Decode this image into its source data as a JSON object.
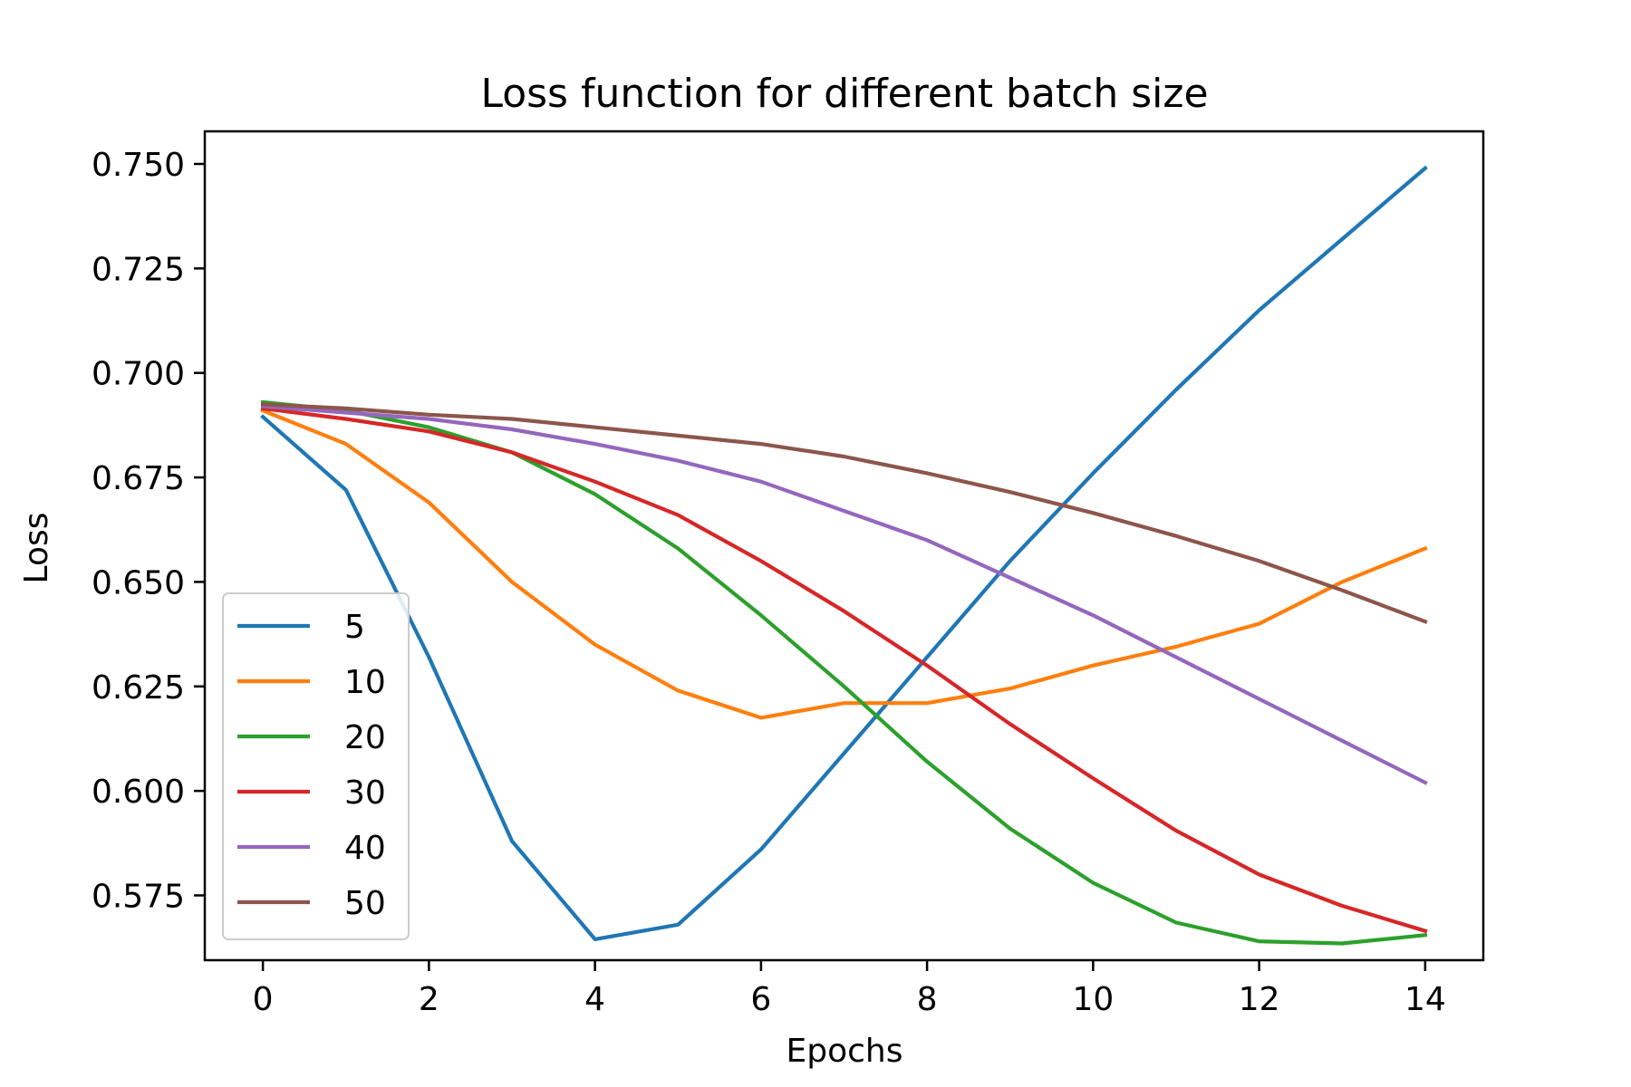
{
  "chart_data": {
    "type": "line",
    "title": "Loss function for different batch size",
    "xlabel": "Epochs",
    "ylabel": "Loss",
    "xlim": [
      -0.7,
      14.7
    ],
    "ylim": [
      0.5595,
      0.7578
    ],
    "xticks": [
      0,
      2,
      4,
      6,
      8,
      10,
      12,
      14
    ],
    "xtick_labels": [
      "0",
      "2",
      "4",
      "6",
      "8",
      "10",
      "12",
      "14"
    ],
    "yticks": [
      0.575,
      0.6,
      0.625,
      0.65,
      0.675,
      0.7,
      0.725,
      0.75
    ],
    "ytick_labels": [
      "0.575",
      "0.600",
      "0.625",
      "0.650",
      "0.675",
      "0.700",
      "0.725",
      "0.750"
    ],
    "grid": false,
    "legend_position": "lower-left",
    "x": [
      0,
      1,
      2,
      3,
      4,
      5,
      6,
      7,
      8,
      9,
      10,
      11,
      12,
      13,
      14
    ],
    "series": [
      {
        "name": "5",
        "color": "#1f77b4",
        "values": [
          0.6895,
          0.672,
          0.632,
          0.588,
          0.5645,
          0.568,
          0.586,
          0.609,
          0.632,
          0.655,
          0.676,
          0.696,
          0.715,
          0.732,
          0.749
        ]
      },
      {
        "name": "10",
        "color": "#ff7f0e",
        "values": [
          0.691,
          0.683,
          0.669,
          0.65,
          0.635,
          0.624,
          0.6175,
          0.621,
          0.621,
          0.6245,
          0.63,
          0.6345,
          0.64,
          0.65,
          0.658
        ]
      },
      {
        "name": "20",
        "color": "#2ca02c",
        "values": [
          0.693,
          0.691,
          0.687,
          0.681,
          0.671,
          0.658,
          0.642,
          0.625,
          0.607,
          0.591,
          0.578,
          0.5685,
          0.564,
          0.5635,
          0.5655
        ]
      },
      {
        "name": "30",
        "color": "#d62728",
        "values": [
          0.6915,
          0.689,
          0.686,
          0.681,
          0.674,
          0.666,
          0.655,
          0.643,
          0.63,
          0.616,
          0.603,
          0.5905,
          0.58,
          0.5725,
          0.5665
        ]
      },
      {
        "name": "40",
        "color": "#9467bd",
        "values": [
          0.692,
          0.6905,
          0.689,
          0.6865,
          0.683,
          0.679,
          0.674,
          0.667,
          0.66,
          0.651,
          0.642,
          0.632,
          0.622,
          0.612,
          0.602
        ]
      },
      {
        "name": "50",
        "color": "#8c564b",
        "values": [
          0.6925,
          0.6915,
          0.69,
          0.689,
          0.687,
          0.685,
          0.683,
          0.68,
          0.676,
          0.6715,
          0.6665,
          0.661,
          0.655,
          0.648,
          0.6405
        ]
      }
    ]
  }
}
